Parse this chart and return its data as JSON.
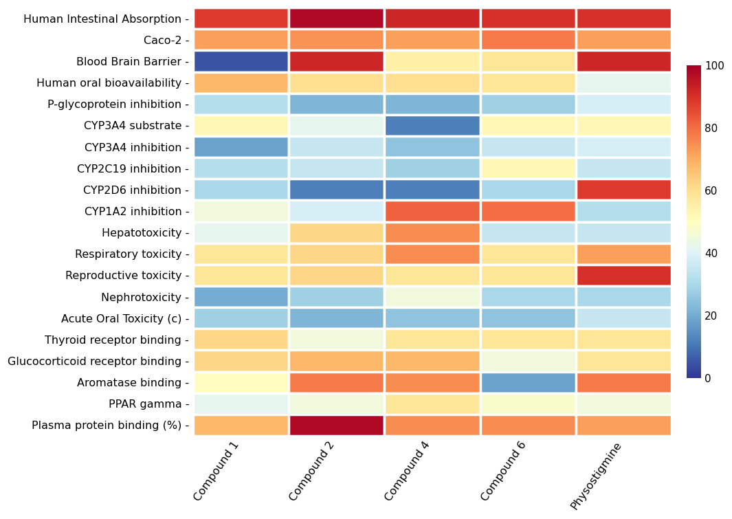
{
  "rows": [
    "Human Intestinal Absorption",
    "Caco-2",
    "Blood Brain Barrier",
    "Human oral bioavailability",
    "P-glycoprotein inhibition",
    "CYP3A4 substrate",
    "CYP3A4 inhibition",
    "CYP2C19 inhibition",
    "CYP2D6 inhibition",
    "CYP1A2 inhibition",
    "Hepatotoxicity",
    "Respiratory toxicity",
    "Reproductive toxicity",
    "Nephrotoxicity",
    "Acute Oral Toxicity (c)",
    "Thyroid receptor binding",
    "Glucocorticoid receptor binding",
    "Aromatase binding",
    "PPAR gamma",
    "Plasma protein binding (%)"
  ],
  "columns": [
    "Compound 1",
    "Compound 2",
    "Compound 4",
    "Compound 6",
    "Physostigmine"
  ],
  "data": [
    [
      88,
      98,
      92,
      90,
      90
    ],
    [
      72,
      74,
      72,
      78,
      72
    ],
    [
      5,
      92,
      55,
      58,
      92
    ],
    [
      68,
      60,
      60,
      58,
      42
    ],
    [
      32,
      22,
      22,
      28,
      38
    ],
    [
      52,
      42,
      12,
      52,
      52
    ],
    [
      18,
      35,
      25,
      35,
      38
    ],
    [
      32,
      35,
      28,
      52,
      35
    ],
    [
      30,
      12,
      12,
      30,
      88
    ],
    [
      45,
      38,
      82,
      80,
      32
    ],
    [
      42,
      62,
      75,
      35,
      35
    ],
    [
      58,
      62,
      75,
      58,
      72
    ],
    [
      58,
      62,
      58,
      58,
      90
    ],
    [
      20,
      28,
      45,
      30,
      30
    ],
    [
      28,
      22,
      25,
      25,
      35
    ],
    [
      62,
      45,
      58,
      58,
      58
    ],
    [
      62,
      68,
      68,
      45,
      58
    ],
    [
      50,
      78,
      75,
      18,
      78
    ],
    [
      42,
      45,
      58,
      48,
      45
    ],
    [
      68,
      98,
      75,
      75,
      72
    ]
  ],
  "vmin": 0,
  "vmax": 100,
  "colorbar_ticks": [
    0,
    20,
    40,
    60,
    80,
    100
  ],
  "cell_linewidth": 2.5,
  "cell_linecolor": "white",
  "figsize": [
    10.65,
    7.55
  ],
  "dpi": 100,
  "tick_fontsize": 11.5,
  "colorbar_tick_fontsize": 11,
  "row_label_suffix": " -"
}
